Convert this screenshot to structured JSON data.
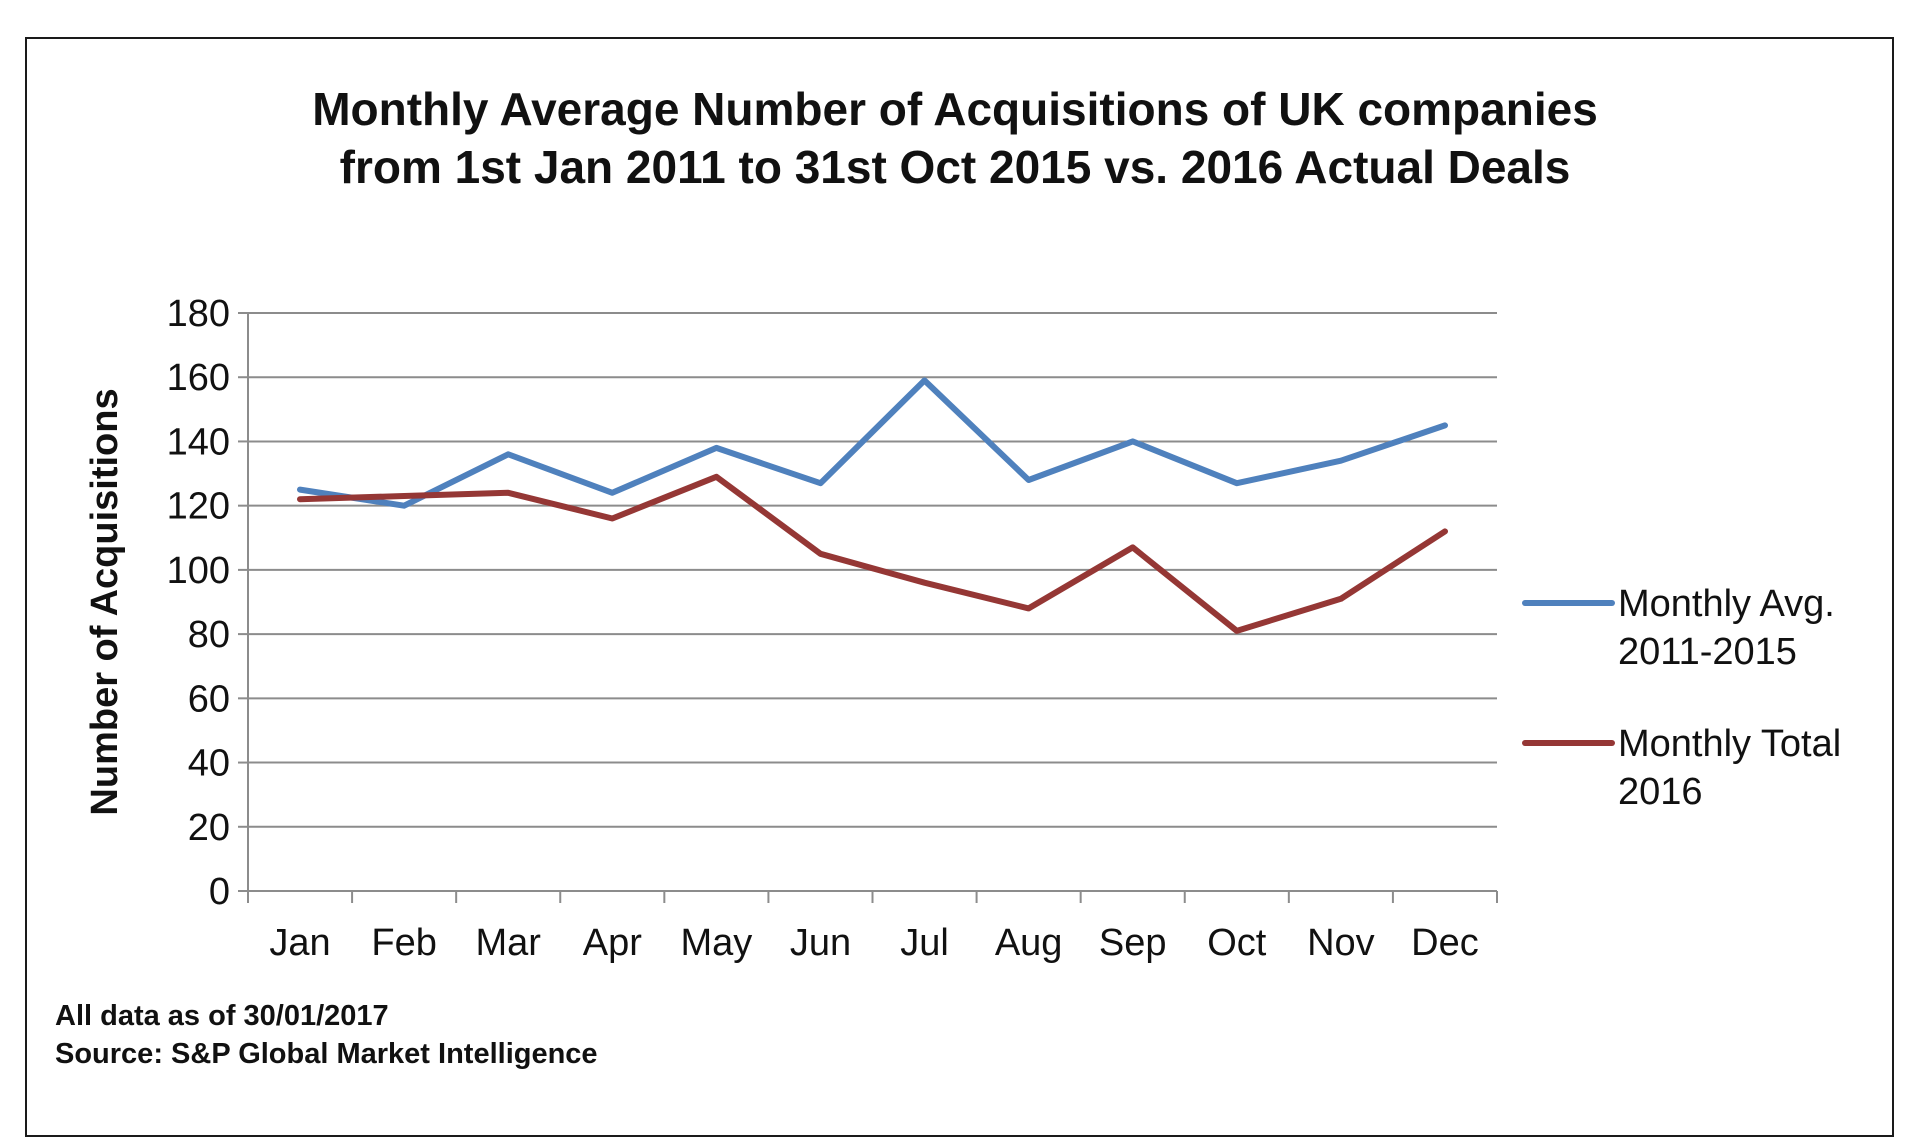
{
  "chart_data": {
    "type": "line",
    "title": "Monthly Average Number of Acquisitions of UK companies",
    "subtitle": "from 1st Jan 2011 to 31st Oct 2015 vs. 2016 Actual Deals",
    "xlabel": "",
    "ylabel": "Number of Acquisitions",
    "categories": [
      "Jan",
      "Feb",
      "Mar",
      "Apr",
      "May",
      "Jun",
      "Jul",
      "Aug",
      "Sep",
      "Oct",
      "Nov",
      "Dec"
    ],
    "ylim": [
      0,
      180
    ],
    "yticks": [
      0,
      20,
      40,
      60,
      80,
      100,
      120,
      140,
      160,
      180
    ],
    "grid": true,
    "legend_position": "right",
    "series": [
      {
        "name": "Monthly Avg. 2011-2015",
        "legend_lines": [
          "Monthly Avg.",
          "2011-2015"
        ],
        "color": "#4f81bd",
        "values": [
          125,
          120,
          136,
          124,
          138,
          127,
          159,
          128,
          140,
          127,
          134,
          145
        ]
      },
      {
        "name": "Monthly Total 2016",
        "legend_lines": [
          "Monthly Total",
          "2016"
        ],
        "color": "#953735",
        "values": [
          122,
          123,
          124,
          116,
          129,
          105,
          96,
          88,
          107,
          81,
          91,
          112
        ]
      }
    ]
  },
  "footnotes": {
    "date_note": "All data as of 30/01/2017",
    "source": "Source: S&P Global Market Intelligence"
  }
}
